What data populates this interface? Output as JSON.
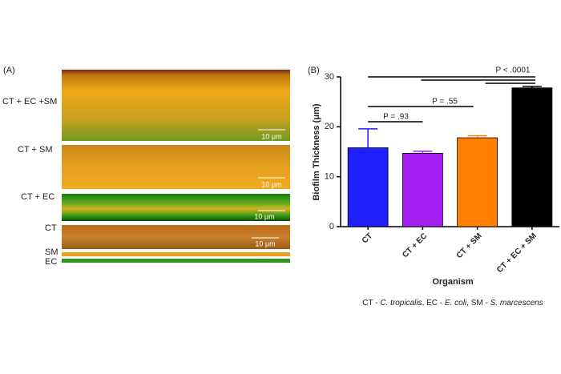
{
  "panel_a": {
    "label": "(A)",
    "rows": [
      "CT + EC +SM",
      "CT + SM",
      "CT + EC",
      "CT",
      "SM",
      "EC"
    ],
    "scale_bars": [
      "10 μm",
      "10 μm",
      "10 μm",
      "10 μm"
    ]
  },
  "chart_data": {
    "type": "bar",
    "panel_label": "(B)",
    "categories": [
      "CT",
      "CT + EC",
      "CT + SM",
      "CT + EC + SM"
    ],
    "values": [
      15.8,
      14.7,
      17.8,
      27.8
    ],
    "errors": [
      3.8,
      0.4,
      0.4,
      0.3
    ],
    "colors": [
      "#1f1fff",
      "#a21ff0",
      "#ff8000",
      "#000000"
    ],
    "ylim": [
      0,
      30
    ],
    "yticks": [
      0,
      10,
      20,
      30
    ],
    "y_label": "Biofilm Thickness (μm)",
    "x_label": "Organism",
    "annotations": [
      "P = .93",
      "P = .55",
      "P < .0001"
    ],
    "caption": [
      "CT - ",
      "C. tropicalis",
      ", EC - ",
      "E. coli",
      ", SM - ",
      "S. marcescens"
    ]
  }
}
